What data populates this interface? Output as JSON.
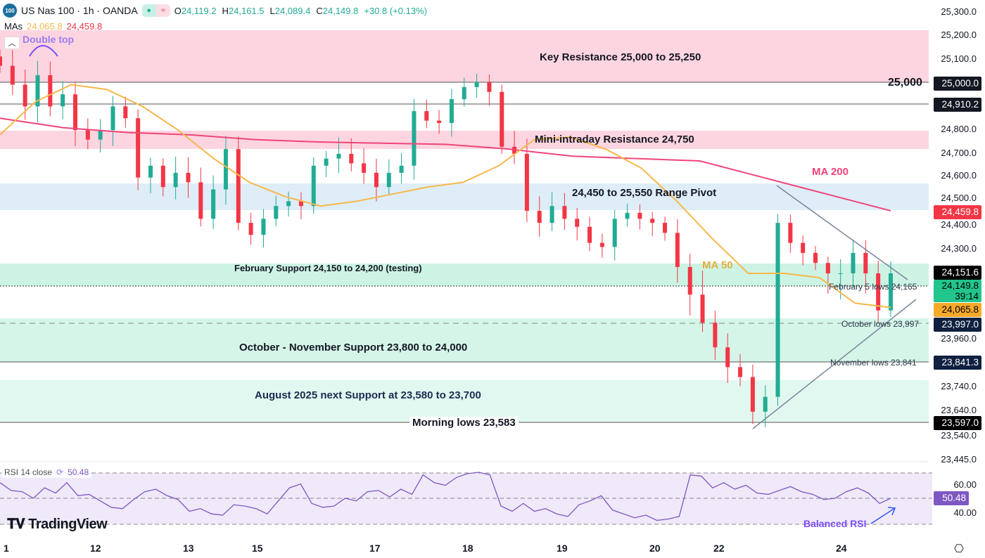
{
  "header": {
    "symbol_badge": "100",
    "title": "US Nas 100 · 1h · OANDA",
    "open_label": "O",
    "open": "24,119.2",
    "high_label": "H",
    "high": "24,161.5",
    "low_label": "L",
    "low": "24,089.4",
    "close_label": "C",
    "close": "24,149.8",
    "change": "+30.8 (+0.13%)"
  },
  "mas": {
    "label": "MAs",
    "ma50": "24,065.8",
    "ma200": "24,459.8"
  },
  "annotations": {
    "double_top": "Double top",
    "key_res": "Key Resistance 25,000 to 25,250",
    "level_25000": "25,000",
    "mini_res": "Mini-intraday Resistance 24,750",
    "pivot": "24,450 to 25,550 Range Pivot",
    "ma200": "MA 200",
    "ma50": "MA 50",
    "feb_support": "February Support 24,150 to 24,200 (testing)",
    "feb5": "February 5 lows 24,165",
    "oct_lows": "October lows 23,997",
    "octnov": "October - November Support 23,800 to 24,000",
    "nov_lows": "November lows 23,841",
    "aug": "August 2025 next Support at 23,580 to 23,700",
    "morning": "Morning lows 23,583",
    "balanced_rsi": "Balanced RSI"
  },
  "price_axis": [
    "25,300.0",
    "25,200.0",
    "25,100.0",
    "24,800.0",
    "24,700.0",
    "24,600.0",
    "24,500.0",
    "24,400.0",
    "24,300.0",
    "23,960.0",
    "23,740.0",
    "23,640.0",
    "23,540.0",
    "23,445.0"
  ],
  "price_tags": {
    "t25000": "25,000.0",
    "t24910": "24,910.2",
    "ma200": "24,459.8",
    "t24151": "24,151.6",
    "last": "24,149.8",
    "countdown": "39:14",
    "ma50": "24,065.8",
    "t23997": "23,997.0",
    "t23841": "23,841.3",
    "t23597": "23,597.0"
  },
  "rsi": {
    "label": "RSI 14 close",
    "value": "50.48",
    "axis": [
      "60.00",
      "40.00"
    ]
  },
  "dates": [
    "1",
    "12",
    "13",
    "15",
    "17",
    "18",
    "19",
    "20",
    "22",
    "24"
  ],
  "watermark": "TradingView",
  "colors": {
    "up": "#22ab94",
    "down": "#f23645",
    "ma50": "#f7b84b",
    "ma200": "#f0457a",
    "rsi": "#7e57c2"
  },
  "chart_data": {
    "type": "candlestick",
    "closes": [
      25070,
      24990,
      24900,
      25030,
      24900,
      24950,
      24800,
      24760,
      24800,
      24900,
      24850,
      24600,
      24650,
      24560,
      24620,
      24580,
      24420,
      24550,
      24720,
      24400,
      24340,
      24420,
      24480,
      24500,
      24480,
      24650,
      24680,
      24700,
      24660,
      24620,
      24560,
      24620,
      24650,
      24880,
      24840,
      24830,
      24930,
      24980,
      25000,
      24960,
      24730,
      24700,
      24460,
      24400,
      24480,
      24420,
      24380,
      24300,
      24280,
      24420,
      24450,
      24420,
      24400,
      24350,
      24180,
      24100,
      24000,
      23900,
      23820,
      23780,
      23640,
      23700,
      24400,
      24300,
      24250,
      24200,
      24150,
      24150,
      24250,
      24150,
      24060,
      24150
    ],
    "ma50": [
      24780,
      24920,
      24990,
      24970,
      24900,
      24800,
      24680,
      24580,
      24520,
      24480,
      24500,
      24530,
      24560,
      24580,
      24650,
      24760,
      24770,
      24720,
      24640,
      24500,
      24320,
      24150,
      24150,
      24140,
      24080,
      24070
    ],
    "ma200": [
      24850,
      24810,
      24790,
      24780,
      24760,
      24750,
      24745,
      24740,
      24720,
      24690,
      24680,
      24670,
      24600,
      24530,
      24460
    ],
    "rsi": [
      62,
      56,
      55,
      50,
      58,
      54,
      62,
      52,
      53,
      48,
      43,
      42,
      49,
      55,
      57,
      52,
      49,
      40,
      42,
      38,
      37,
      45,
      44,
      42,
      38,
      48,
      58,
      61,
      46,
      43,
      44,
      50,
      48,
      55,
      56,
      51,
      57,
      53,
      68,
      62,
      60,
      66,
      69,
      70,
      68,
      44,
      40,
      46,
      40,
      42,
      38,
      36,
      45,
      48,
      52,
      41,
      38,
      35,
      37,
      33,
      34,
      36,
      68,
      67,
      58,
      62,
      57,
      60,
      54,
      53,
      56,
      59,
      55,
      53,
      49,
      50,
      55,
      58,
      54,
      46,
      50
    ],
    "ylim": [
      23445,
      25300
    ],
    "rsi_range": [
      30,
      70
    ]
  }
}
